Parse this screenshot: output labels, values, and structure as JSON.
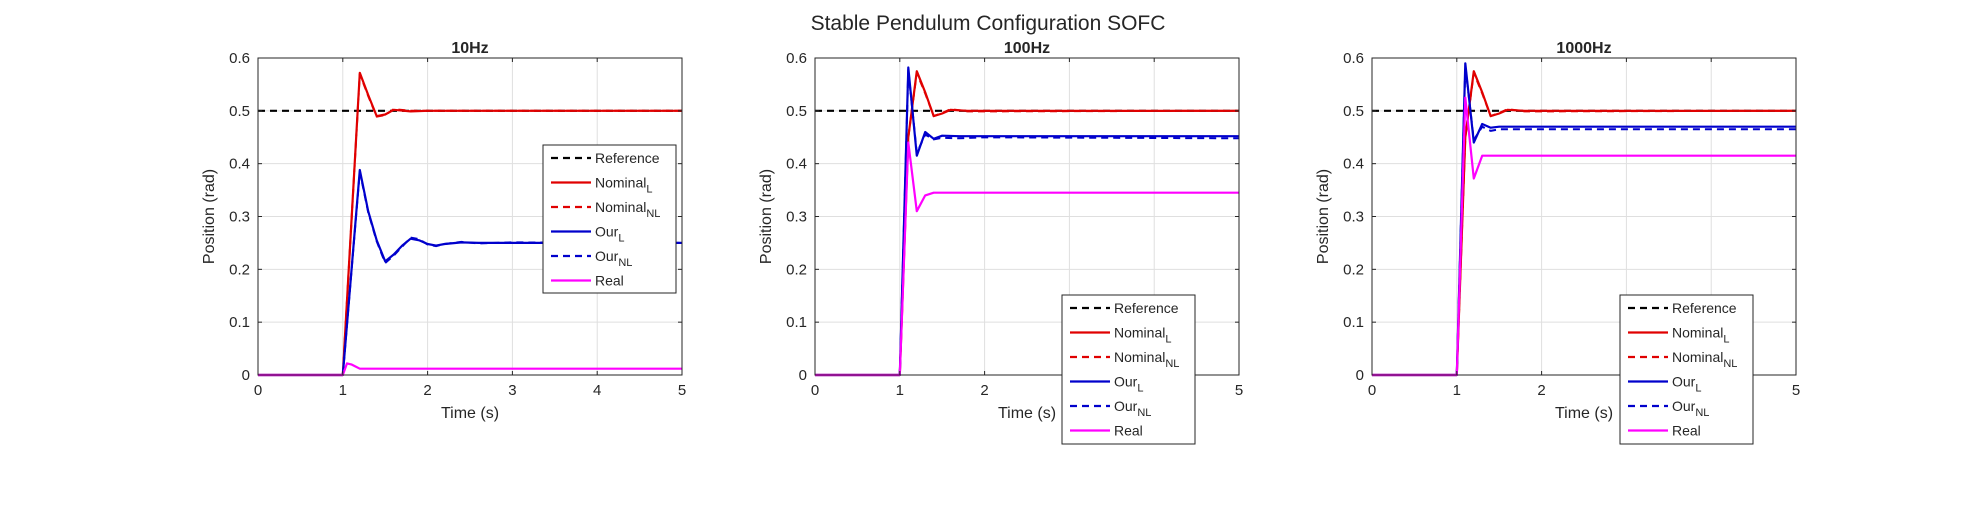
{
  "figure": {
    "title": "Stable Pendulum Configuration SOFC"
  },
  "colors": {
    "reference": "#000000",
    "nominal": "#e00000",
    "ours": "#0000cc",
    "real": "#ff00ff",
    "grid": "#dfdfdf",
    "axis": "#262626"
  },
  "legend_entries": [
    {
      "key": "reference",
      "base": "Reference",
      "sub": "",
      "color": "#000000",
      "dash": true
    },
    {
      "key": "nominal_l",
      "base": "Nominal",
      "sub": "L",
      "color": "#e00000",
      "dash": false
    },
    {
      "key": "nominal_nl",
      "base": "Nominal",
      "sub": "NL",
      "color": "#e00000",
      "dash": true
    },
    {
      "key": "our_l",
      "base": "Our",
      "sub": "L",
      "color": "#0000cc",
      "dash": false
    },
    {
      "key": "our_nl",
      "base": "Our",
      "sub": "NL",
      "color": "#0000cc",
      "dash": true
    },
    {
      "key": "real",
      "base": "Real",
      "sub": "",
      "color": "#ff00ff",
      "dash": false
    }
  ],
  "chart_data": [
    {
      "type": "line",
      "title": "10Hz",
      "xlabel": "Time (s)",
      "ylabel": "Position (rad)",
      "xlim": [
        0,
        5
      ],
      "ylim": [
        0,
        0.6
      ],
      "xticks": [
        "0",
        "1",
        "2",
        "3",
        "4",
        "5"
      ],
      "yticks": [
        "0",
        "0.1",
        "0.2",
        "0.3",
        "0.4",
        "0.5",
        "0.6"
      ],
      "grid": true,
      "legend_position": "right",
      "series": [
        {
          "name": "Reference",
          "x": [
            0,
            5
          ],
          "y": [
            0.5,
            0.5
          ]
        },
        {
          "name": "Nominal_L",
          "x": [
            0,
            1.0,
            1.2,
            1.3,
            1.4,
            1.5,
            1.6,
            1.8,
            2.0,
            5.0
          ],
          "y": [
            0,
            0,
            0.572,
            0.53,
            0.49,
            0.493,
            0.502,
            0.499,
            0.5,
            0.5
          ]
        },
        {
          "name": "Nominal_NL",
          "x": [
            0,
            1.0,
            1.2,
            1.3,
            1.4,
            1.5,
            1.6,
            1.8,
            2.0,
            5.0
          ],
          "y": [
            0,
            0,
            0.57,
            0.528,
            0.489,
            0.492,
            0.503,
            0.5,
            0.5,
            0.5
          ]
        },
        {
          "name": "Our_L",
          "x": [
            0,
            1.0,
            1.2,
            1.3,
            1.4,
            1.5,
            1.6,
            1.7,
            1.8,
            1.9,
            2.0,
            2.1,
            2.2,
            2.4,
            2.6,
            3.0,
            5.0
          ],
          "y": [
            0,
            0,
            0.388,
            0.31,
            0.255,
            0.215,
            0.228,
            0.245,
            0.258,
            0.255,
            0.248,
            0.245,
            0.248,
            0.251,
            0.25,
            0.25,
            0.25
          ]
        },
        {
          "name": "Our_NL",
          "x": [
            0,
            1.0,
            1.2,
            1.3,
            1.4,
            1.5,
            1.6,
            1.7,
            1.8,
            1.9,
            2.0,
            2.1,
            2.2,
            2.4,
            2.6,
            3.0,
            5.0
          ],
          "y": [
            0,
            0,
            0.385,
            0.308,
            0.253,
            0.212,
            0.226,
            0.243,
            0.26,
            0.257,
            0.247,
            0.244,
            0.248,
            0.252,
            0.249,
            0.251,
            0.25
          ]
        },
        {
          "name": "Real",
          "x": [
            0,
            1.0,
            1.05,
            1.1,
            1.15,
            1.2,
            5.0
          ],
          "y": [
            0,
            0,
            0.022,
            0.02,
            0.016,
            0.012,
            0.012
          ]
        }
      ]
    },
    {
      "type": "line",
      "title": "100Hz",
      "xlabel": "Time (s)",
      "ylabel": "Position (rad)",
      "xlim": [
        0,
        5
      ],
      "ylim": [
        0,
        0.6
      ],
      "xticks": [
        "0",
        "1",
        "2",
        "3",
        "4",
        "5"
      ],
      "yticks": [
        "0",
        "0.1",
        "0.2",
        "0.3",
        "0.4",
        "0.5",
        "0.6"
      ],
      "grid": true,
      "legend_position": "bottom-right",
      "series": [
        {
          "name": "Reference",
          "x": [
            0,
            5
          ],
          "y": [
            0.5,
            0.5
          ]
        },
        {
          "name": "Nominal_L",
          "x": [
            0,
            1.0,
            1.1,
            1.2,
            1.3,
            1.4,
            1.5,
            1.6,
            1.8,
            5.0
          ],
          "y": [
            0,
            0,
            0.45,
            0.575,
            0.535,
            0.49,
            0.495,
            0.502,
            0.5,
            0.5
          ]
        },
        {
          "name": "Nominal_NL",
          "x": [
            0,
            1.0,
            1.1,
            1.2,
            1.3,
            1.4,
            1.5,
            1.6,
            1.8,
            5.0
          ],
          "y": [
            0,
            0,
            0.45,
            0.572,
            0.533,
            0.49,
            0.496,
            0.503,
            0.499,
            0.5
          ]
        },
        {
          "name": "Our_L",
          "x": [
            0,
            1.0,
            1.1,
            1.2,
            1.3,
            1.4,
            1.5,
            1.7,
            5.0
          ],
          "y": [
            0,
            0,
            0.582,
            0.415,
            0.46,
            0.447,
            0.453,
            0.452,
            0.452
          ]
        },
        {
          "name": "Our_NL",
          "x": [
            0,
            1.0,
            1.1,
            1.2,
            1.3,
            1.4,
            1.5,
            1.7,
            2.0,
            5.0
          ],
          "y": [
            0,
            0,
            0.578,
            0.42,
            0.455,
            0.446,
            0.449,
            0.448,
            0.45,
            0.448
          ]
        },
        {
          "name": "Real",
          "x": [
            0,
            1.0,
            1.1,
            1.2,
            1.3,
            1.4,
            5.0
          ],
          "y": [
            0,
            0,
            0.44,
            0.31,
            0.34,
            0.345,
            0.345
          ]
        }
      ]
    },
    {
      "type": "line",
      "title": "1000Hz",
      "xlabel": "Time (s)",
      "ylabel": "Position (rad)",
      "xlim": [
        0,
        5
      ],
      "ylim": [
        0,
        0.6
      ],
      "xticks": [
        "0",
        "1",
        "2",
        "3",
        "4",
        "5"
      ],
      "yticks": [
        "0",
        "0.1",
        "0.2",
        "0.3",
        "0.4",
        "0.5",
        "0.6"
      ],
      "grid": true,
      "legend_position": "bottom-right",
      "series": [
        {
          "name": "Reference",
          "x": [
            0,
            5
          ],
          "y": [
            0.5,
            0.5
          ]
        },
        {
          "name": "Nominal_L",
          "x": [
            0,
            1.0,
            1.1,
            1.2,
            1.3,
            1.4,
            1.5,
            1.6,
            1.8,
            5.0
          ],
          "y": [
            0,
            0,
            0.45,
            0.575,
            0.535,
            0.49,
            0.495,
            0.502,
            0.5,
            0.5
          ]
        },
        {
          "name": "Nominal_NL",
          "x": [
            0,
            1.0,
            1.1,
            1.2,
            1.3,
            1.4,
            1.5,
            1.6,
            1.8,
            5.0
          ],
          "y": [
            0,
            0,
            0.45,
            0.572,
            0.533,
            0.49,
            0.496,
            0.503,
            0.499,
            0.5
          ]
        },
        {
          "name": "Our_L",
          "x": [
            0,
            1.0,
            1.1,
            1.2,
            1.3,
            1.4,
            1.5,
            5.0
          ],
          "y": [
            0,
            0,
            0.59,
            0.44,
            0.475,
            0.468,
            0.47,
            0.47
          ]
        },
        {
          "name": "Our_NL",
          "x": [
            0,
            1.0,
            1.1,
            1.2,
            1.3,
            1.4,
            1.5,
            5.0
          ],
          "y": [
            0,
            0,
            0.585,
            0.445,
            0.47,
            0.462,
            0.465,
            0.465
          ]
        },
        {
          "name": "Real",
          "x": [
            0,
            1.0,
            1.1,
            1.2,
            1.3,
            5.0
          ],
          "y": [
            0,
            0,
            0.525,
            0.372,
            0.415,
            0.415
          ]
        }
      ]
    }
  ]
}
